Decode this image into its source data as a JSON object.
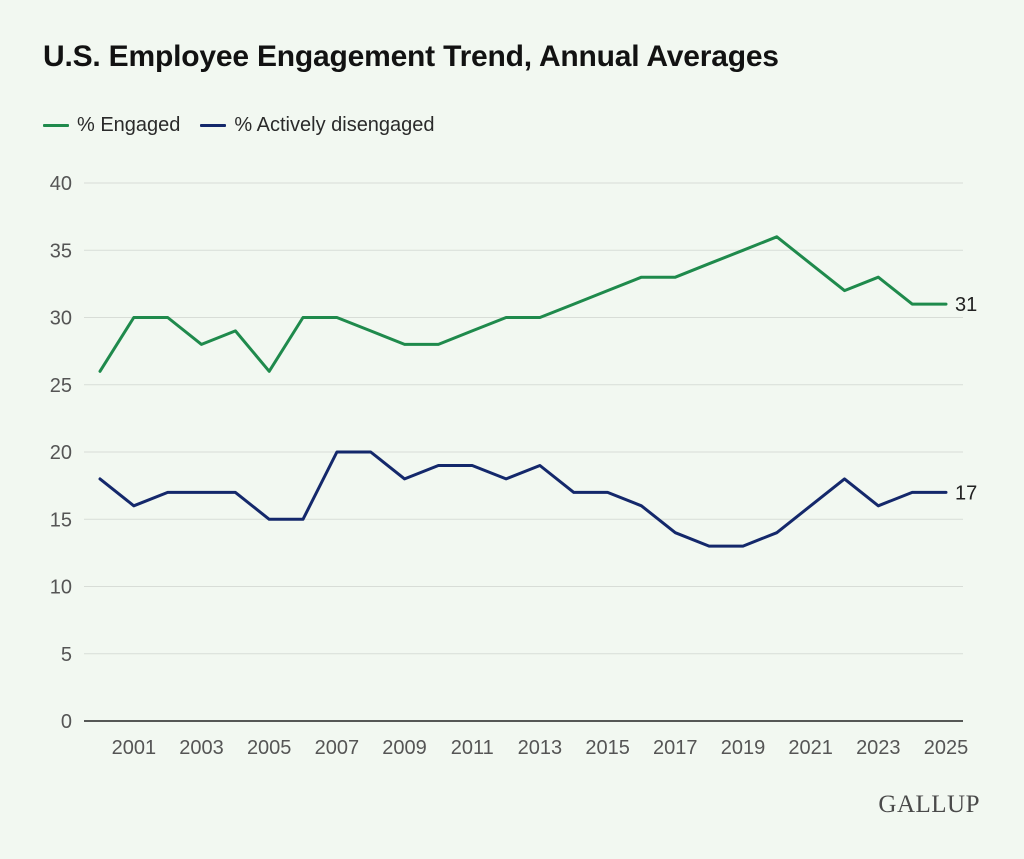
{
  "title": "U.S. Employee Engagement Trend, Annual Averages",
  "logo": "GALLUP",
  "colors": {
    "background": "#f2f8f1",
    "engaged": "#1f8a4c",
    "disengaged": "#14286b",
    "gridline": "#d8ddd7",
    "axis": "#222222",
    "tick_label": "#555555"
  },
  "chart_data": {
    "type": "line",
    "title": "U.S. Employee Engagement Trend, Annual Averages",
    "xlabel": "",
    "ylabel": "",
    "ylim": [
      0,
      40
    ],
    "yticks": [
      0,
      5,
      10,
      15,
      20,
      25,
      30,
      35,
      40
    ],
    "xticks": [
      "2001",
      "2003",
      "2005",
      "2007",
      "2009",
      "2011",
      "2013",
      "2015",
      "2017",
      "2019",
      "2021",
      "2023",
      "2025"
    ],
    "x": [
      2000,
      2001,
      2002,
      2003,
      2004,
      2005,
      2006,
      2007,
      2008,
      2009,
      2010,
      2011,
      2012,
      2013,
      2014,
      2015,
      2016,
      2017,
      2018,
      2019,
      2020,
      2021,
      2022,
      2023,
      2024,
      2025
    ],
    "grid": true,
    "legend_position": "top-left",
    "series": [
      {
        "name": "% Engaged",
        "color": "#1f8a4c",
        "end_label": "31",
        "values": [
          26,
          30,
          30,
          28,
          29,
          26,
          30,
          30,
          29,
          28,
          28,
          29,
          30,
          30,
          31,
          32,
          33,
          33,
          34,
          35,
          36,
          34,
          32,
          33,
          31,
          31
        ]
      },
      {
        "name": "% Actively disengaged",
        "color": "#14286b",
        "end_label": "17",
        "values": [
          18,
          16,
          17,
          17,
          17,
          15,
          15,
          20,
          20,
          18,
          19,
          19,
          18,
          19,
          17,
          17,
          16,
          14,
          13,
          13,
          14,
          16,
          18,
          16,
          17,
          17
        ]
      }
    ]
  }
}
